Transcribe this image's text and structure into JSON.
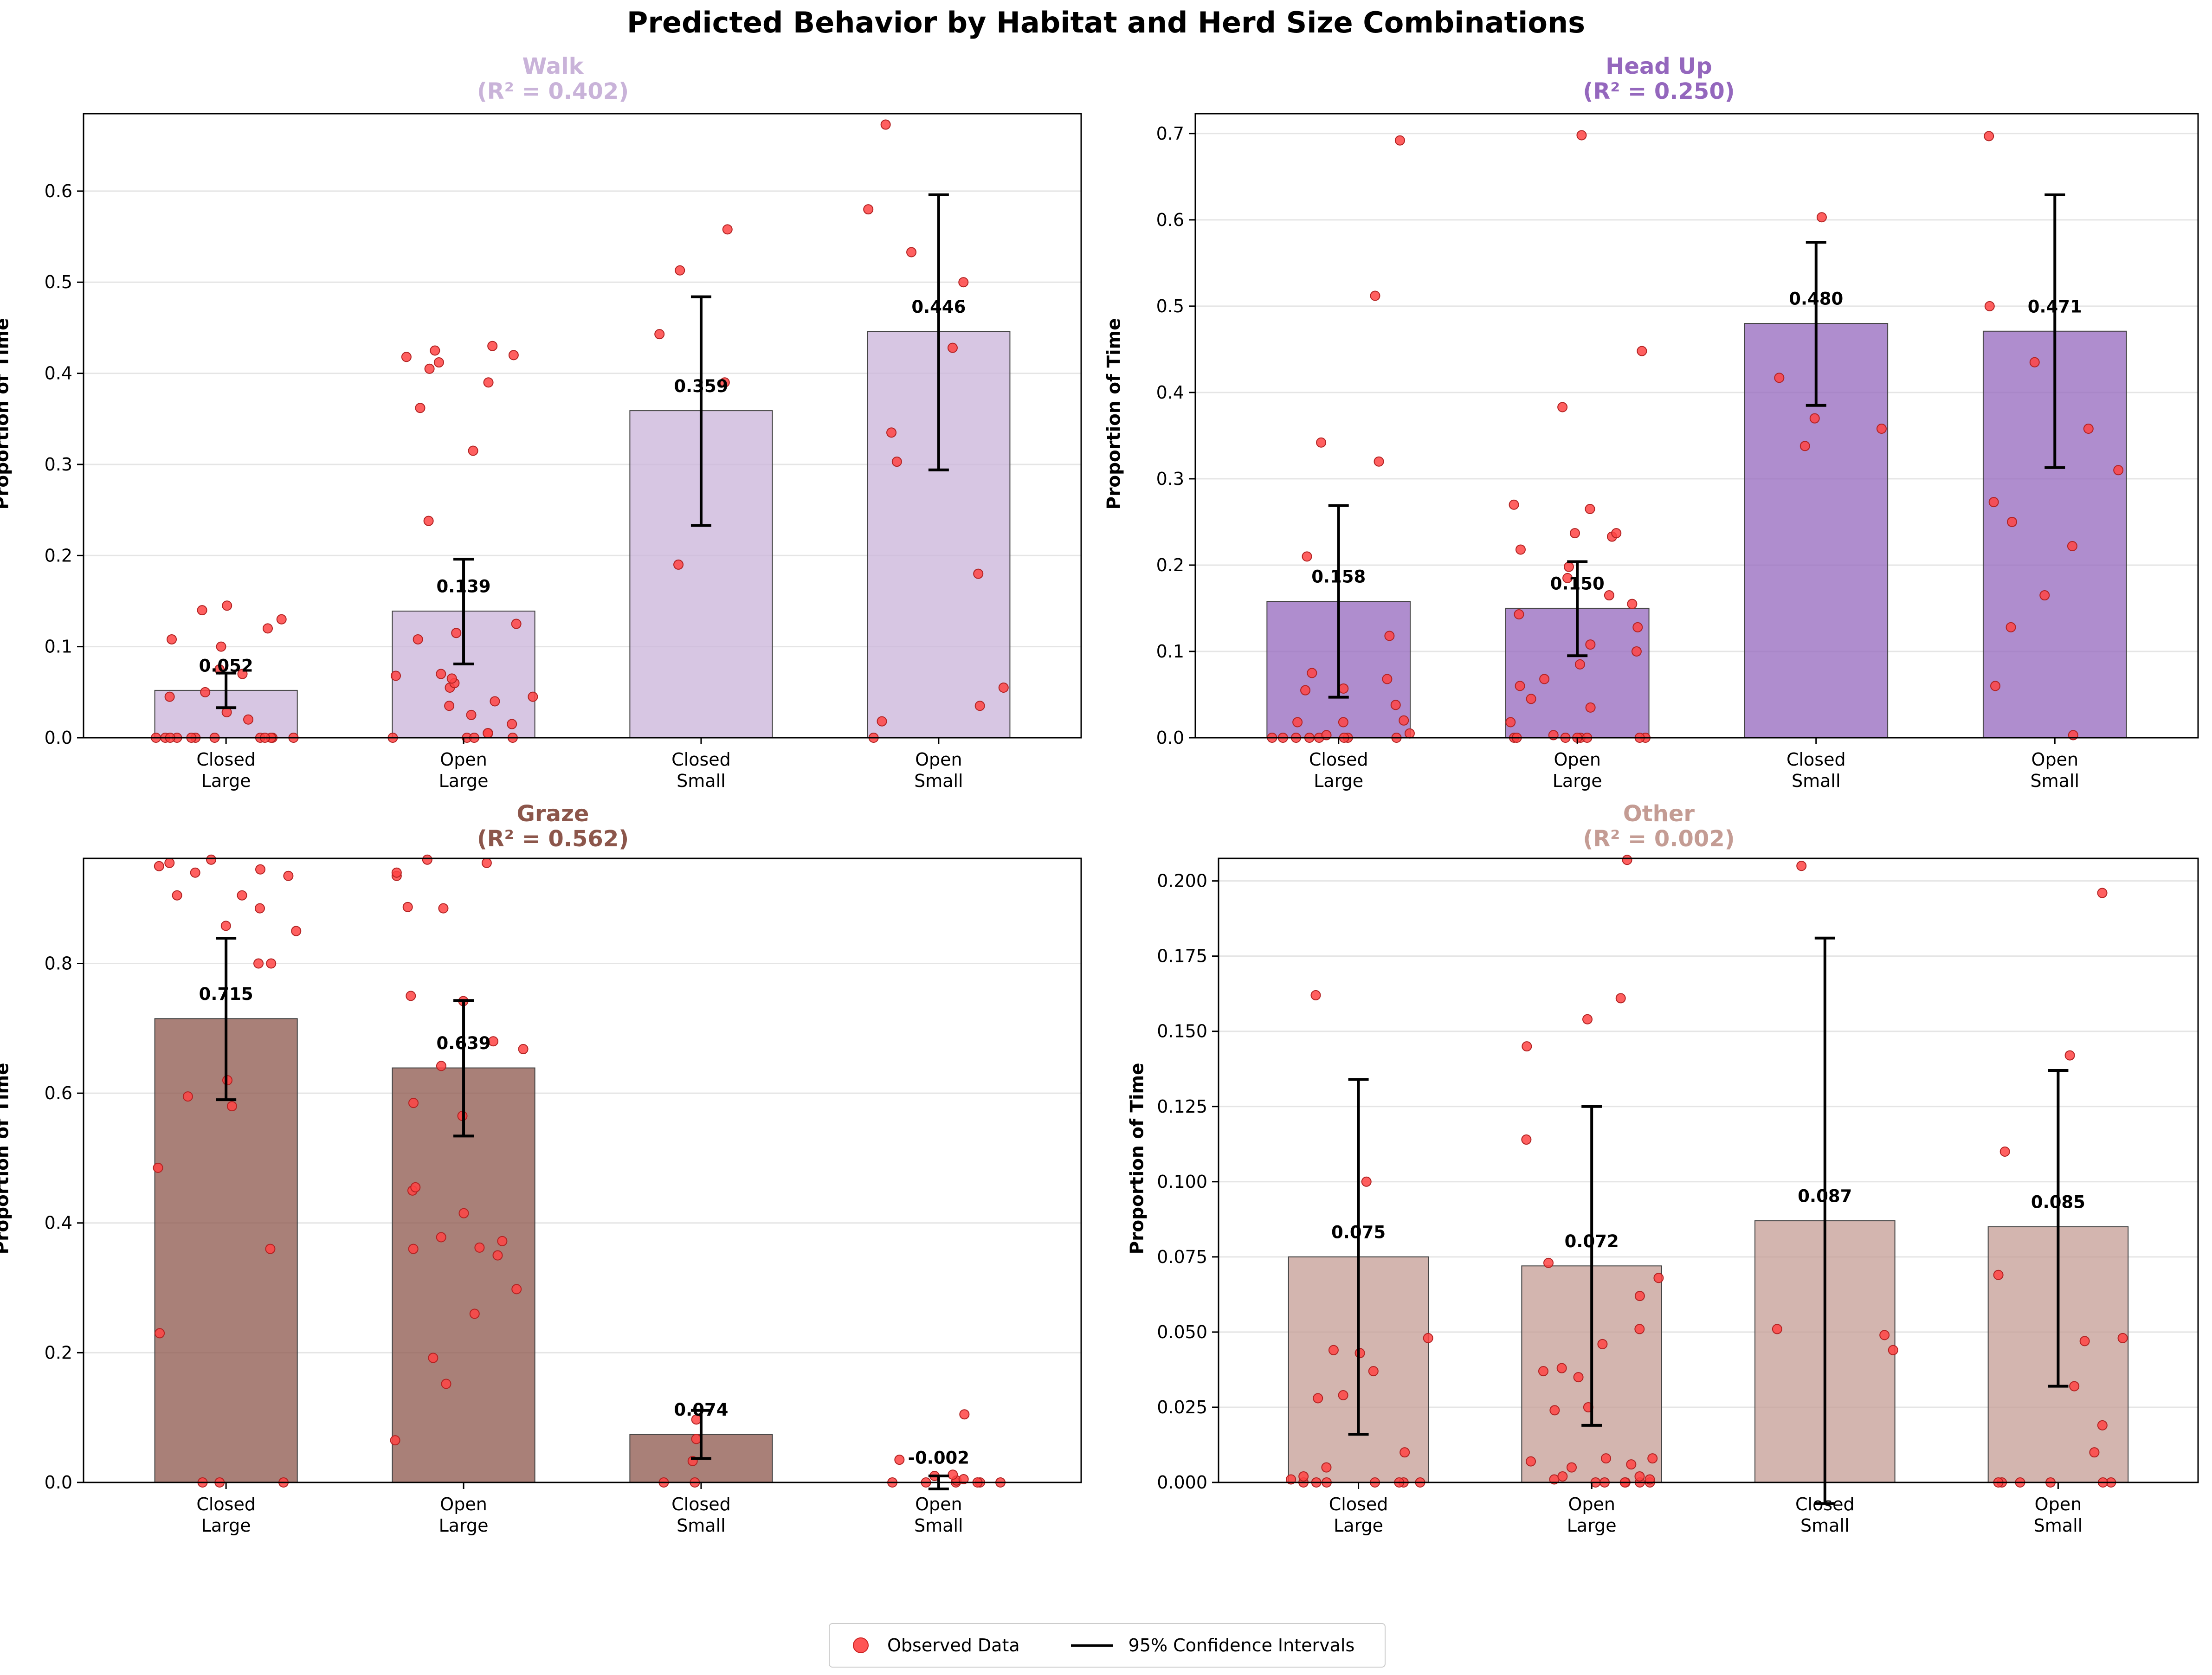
{
  "title": "Predicted Behavior by Habitat and Herd Size Combinations",
  "legend": {
    "observed_label": "Observed Data",
    "ci_label": "95% Confidence Intervals"
  },
  "colors": {
    "points": "#ff4444",
    "points_edge": "#b22222",
    "errorbar": "#000000"
  },
  "chart_data": [
    {
      "type": "bar",
      "title": "Walk",
      "subtitle": "(R² = 0.402)",
      "ylabel": "Proportion of Time",
      "color": "#c9b3d9",
      "title_color": "#c9b3d9",
      "categories": [
        "Closed\nLarge",
        "Open\nLarge",
        "Closed\nSmall",
        "Open\nSmall"
      ],
      "values": [
        0.052,
        0.139,
        0.359,
        0.446
      ],
      "value_labels": [
        "0.052",
        "0.139",
        "0.359",
        "0.446"
      ],
      "ci_low": [
        0.033,
        0.081,
        0.233,
        0.294
      ],
      "ci_high": [
        0.071,
        0.196,
        0.484,
        0.596
      ],
      "ylim": [
        0,
        0.685
      ],
      "yticks": [
        0.0,
        0.1,
        0.2,
        0.3,
        0.4,
        0.5,
        0.6
      ],
      "ytick_labels": [
        "0.0",
        "0.1",
        "0.2",
        "0.3",
        "0.4",
        "0.5",
        "0.6"
      ],
      "observed": [
        [
          0.0,
          0.0,
          0.0,
          0.0,
          0.0,
          0.0,
          0.0,
          0.0,
          0.0,
          0.0,
          0.0,
          0.0,
          0.02,
          0.028,
          0.045,
          0.05,
          0.07,
          0.075,
          0.1,
          0.108,
          0.12,
          0.13,
          0.14,
          0.145
        ],
        [
          0.0,
          0.0,
          0.0,
          0.0,
          0.005,
          0.005,
          0.015,
          0.025,
          0.035,
          0.04,
          0.045,
          0.055,
          0.06,
          0.065,
          0.068,
          0.07,
          0.108,
          0.115,
          0.125,
          0.238,
          0.315,
          0.362,
          0.39,
          0.405,
          0.412,
          0.418,
          0.42,
          0.425,
          0.43
        ],
        [
          0.19,
          0.39,
          0.443,
          0.513,
          0.558
        ],
        [
          0.0,
          0.018,
          0.035,
          0.055,
          0.18,
          0.303,
          0.335,
          0.428,
          0.5,
          0.533,
          0.58,
          0.673
        ]
      ],
      "grid": true
    },
    {
      "type": "bar",
      "title": "Head Up",
      "subtitle": "(R² = 0.250)",
      "ylabel": "Proportion of Time",
      "color": "#9467bd",
      "title_color": "#9467bd",
      "categories": [
        "Closed\nLarge",
        "Open\nLarge",
        "Closed\nSmall",
        "Open\nSmall"
      ],
      "values": [
        0.158,
        0.15,
        0.48,
        0.471
      ],
      "value_labels": [
        "0.158",
        "0.150",
        "0.480",
        "0.471"
      ],
      "ci_low": [
        0.047,
        0.095,
        0.385,
        0.313
      ],
      "ci_high": [
        0.269,
        0.204,
        0.574,
        0.629
      ],
      "ylim": [
        0,
        0.723
      ],
      "yticks": [
        0.0,
        0.1,
        0.2,
        0.3,
        0.4,
        0.5,
        0.6,
        0.7
      ],
      "ytick_labels": [
        "0.0",
        "0.1",
        "0.2",
        "0.3",
        "0.4",
        "0.5",
        "0.6",
        "0.7"
      ],
      "observed": [
        [
          0.0,
          0.0,
          0.0,
          0.0,
          0.0,
          0.0,
          0.0,
          0.0,
          0.003,
          0.005,
          0.018,
          0.018,
          0.02,
          0.038,
          0.055,
          0.057,
          0.068,
          0.075,
          0.118,
          0.21,
          0.32,
          0.342,
          0.512,
          0.692
        ],
        [
          0.0,
          0.0,
          0.0,
          0.0,
          0.0,
          0.0,
          0.0,
          0.0,
          0.003,
          0.018,
          0.035,
          0.045,
          0.06,
          0.068,
          0.085,
          0.1,
          0.108,
          0.128,
          0.143,
          0.155,
          0.165,
          0.185,
          0.198,
          0.218,
          0.233,
          0.237,
          0.237,
          0.265,
          0.27,
          0.383,
          0.448,
          0.698
        ],
        [
          0.338,
          0.358,
          0.37,
          0.417,
          0.603
        ],
        [
          0.003,
          0.06,
          0.128,
          0.165,
          0.222,
          0.25,
          0.273,
          0.31,
          0.358,
          0.435,
          0.5,
          0.697
        ]
      ],
      "grid": true
    },
    {
      "type": "bar",
      "title": "Graze",
      "subtitle": "(R² = 0.562)",
      "ylabel": "Proportion of Time",
      "color": "#8c564b",
      "title_color": "#8c564b",
      "categories": [
        "Closed\nLarge",
        "Open\nLarge",
        "Closed\nSmall",
        "Open\nSmall"
      ],
      "values": [
        0.715,
        0.639,
        0.074,
        -0.002
      ],
      "value_labels": [
        "0.715",
        "0.639",
        "0.074",
        "-0.002"
      ],
      "ci_low": [
        0.59,
        0.534,
        0.037,
        -0.01
      ],
      "ci_high": [
        0.839,
        0.743,
        0.111,
        0.01
      ],
      "ylim": [
        0,
        0.962
      ],
      "yticks": [
        0.0,
        0.2,
        0.4,
        0.6,
        0.8
      ],
      "ytick_labels": [
        "0.0",
        "0.2",
        "0.4",
        "0.6",
        "0.8"
      ],
      "observed": [
        [
          0.0,
          0.0,
          0.0,
          0.23,
          0.36,
          0.485,
          0.58,
          0.595,
          0.62,
          0.8,
          0.8,
          0.85,
          0.858,
          0.885,
          0.905,
          0.905,
          0.935,
          0.94,
          0.945,
          0.95,
          0.955,
          0.96
        ],
        [
          0.065,
          0.152,
          0.192,
          0.26,
          0.298,
          0.35,
          0.36,
          0.362,
          0.372,
          0.378,
          0.415,
          0.45,
          0.455,
          0.565,
          0.585,
          0.642,
          0.668,
          0.68,
          0.742,
          0.75,
          0.885,
          0.887,
          0.935,
          0.94,
          0.955,
          0.96
        ],
        [
          0.0,
          0.0,
          0.033,
          0.067,
          0.097
        ],
        [
          0.0,
          0.0,
          0.0,
          0.0,
          0.0,
          0.0,
          0.003,
          0.005,
          0.01,
          0.012,
          0.035,
          0.105
        ]
      ],
      "grid": true
    },
    {
      "type": "bar",
      "title": "Other",
      "subtitle": "(R² = 0.002)",
      "ylabel": "Proportion of Time",
      "color": "#c49c94",
      "title_color": "#c49c94",
      "categories": [
        "Closed\nLarge",
        "Open\nLarge",
        "Closed\nSmall",
        "Open\nSmall"
      ],
      "values": [
        0.075,
        0.072,
        0.087,
        0.085
      ],
      "value_labels": [
        "0.075",
        "0.072",
        "0.087",
        "0.085"
      ],
      "ci_low": [
        0.016,
        0.019,
        -0.007,
        0.032
      ],
      "ci_high": [
        0.134,
        0.125,
        0.181,
        0.137
      ],
      "ylim": [
        0,
        0.2075
      ],
      "yticks": [
        0.0,
        0.025,
        0.05,
        0.075,
        0.1,
        0.125,
        0.15,
        0.175,
        0.2
      ],
      "ytick_labels": [
        "0.000",
        "0.025",
        "0.050",
        "0.075",
        "0.100",
        "0.125",
        "0.150",
        "0.175",
        "0.200"
      ],
      "observed": [
        [
          0.0,
          0.0,
          0.0,
          0.0,
          0.0,
          0.0,
          0.0,
          0.001,
          0.002,
          0.005,
          0.01,
          0.028,
          0.029,
          0.037,
          0.043,
          0.044,
          0.048,
          0.1,
          0.162
        ],
        [
          0.0,
          0.0,
          0.0,
          0.0,
          0.0,
          0.0,
          0.001,
          0.001,
          0.002,
          0.002,
          0.005,
          0.006,
          0.007,
          0.008,
          0.008,
          0.024,
          0.025,
          0.035,
          0.037,
          0.038,
          0.046,
          0.051,
          0.062,
          0.068,
          0.073,
          0.114,
          0.145,
          0.154,
          0.161,
          0.207
        ],
        [
          0.044,
          0.049,
          0.051,
          0.205
        ],
        [
          0.0,
          0.0,
          0.0,
          0.0,
          0.0,
          0.0,
          0.01,
          0.019,
          0.032,
          0.047,
          0.048,
          0.069,
          0.11,
          0.142,
          0.196
        ]
      ],
      "grid": true
    }
  ]
}
